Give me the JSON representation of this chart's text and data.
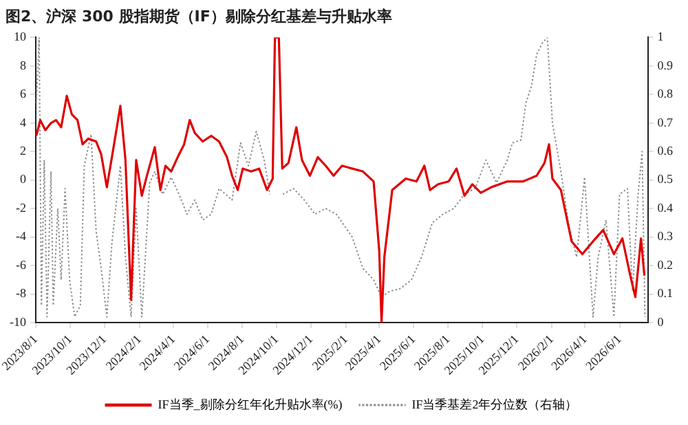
{
  "chart_data": {
    "type": "line",
    "title": "图2、沪深 300 股指期货（IF）剔除分红基差与升贴水率",
    "xlim": [
      "2023-08-01",
      "2026-07-21"
    ],
    "xticks": [
      {
        "value": "2023-08-01",
        "label": "2023/8/1"
      },
      {
        "value": "2023-10-01",
        "label": "2023/10/1"
      },
      {
        "value": "2023-12-01",
        "label": "2023/12/1"
      },
      {
        "value": "2024-02-01",
        "label": "2024/2/1"
      },
      {
        "value": "2024-04-01",
        "label": "2024/4/1"
      },
      {
        "value": "2024-06-01",
        "label": "2024/6/1"
      },
      {
        "value": "2024-08-01",
        "label": "2024/8/1"
      },
      {
        "value": "2024-10-01",
        "label": "2024/10/1"
      },
      {
        "value": "2024-12-01",
        "label": "2024/12/1"
      },
      {
        "value": "2025-02-01",
        "label": "2025/2/1"
      },
      {
        "value": "2025-04-01",
        "label": "2025/4/1"
      },
      {
        "value": "2025-06-01",
        "label": "2025/6/1"
      },
      {
        "value": "2025-08-01",
        "label": "2025/8/1"
      },
      {
        "value": "2025-10-01",
        "label": "2025/10/1"
      },
      {
        "value": "2025-12-01",
        "label": "2025/12/1"
      },
      {
        "value": "2026-02-01",
        "label": "2026/2/1"
      },
      {
        "value": "2026-04-01",
        "label": "2026/4/1"
      },
      {
        "value": "2026-06-01",
        "label": "2026/6/1"
      }
    ],
    "ylim": [
      -10,
      10
    ],
    "yticks": [
      -10,
      -8,
      -6,
      -4,
      -2,
      0,
      2,
      4,
      6,
      8,
      10
    ],
    "y2lim": [
      0,
      1
    ],
    "y2ticks": [
      0,
      0.1,
      0.2,
      0.3,
      0.4,
      0.5,
      0.6,
      0.7,
      0.8,
      0.9,
      1
    ],
    "legend": "bottom",
    "grid": false,
    "marker": "none",
    "series": [
      {
        "name": "IF当季_剔除分红年化升贴水率(%)",
        "color": "#e00000",
        "line_style": "solid",
        "x": [
          "2023-08-02",
          "2023-08-09",
          "2023-08-18",
          "2023-08-28",
          "2023-09-06",
          "2023-09-15",
          "2023-09-25",
          "2023-10-04",
          "2023-10-14",
          "2023-10-23",
          "2023-11-02",
          "2023-11-16",
          "2023-11-25",
          "2023-12-05",
          "2023-12-14",
          "2023-12-29",
          "2024-01-07",
          "2024-01-17",
          "2024-01-26",
          "2024-02-05",
          "2024-02-14",
          "2024-02-28",
          "2024-03-09",
          "2024-03-18",
          "2024-03-28",
          "2024-04-11",
          "2024-04-20",
          "2024-04-30",
          "2024-05-09",
          "2024-05-23",
          "2024-06-07",
          "2024-06-21",
          "2024-07-05",
          "2024-07-14",
          "2024-07-24",
          "2024-08-02",
          "2024-08-17",
          "2024-08-31",
          "2024-09-14",
          "2024-09-24",
          "2024-09-28",
          "2024-10-05",
          "2024-10-11",
          "2024-10-22",
          "2024-11-05",
          "2024-11-15",
          "2024-11-29",
          "2024-12-13",
          "2024-12-27",
          "2025-01-10",
          "2025-01-25",
          "2025-02-12",
          "2025-03-03",
          "2025-03-22",
          "2025-04-01",
          "2025-04-05",
          "2025-04-10",
          "2025-04-24",
          "2025-05-18",
          "2025-06-06",
          "2025-06-20",
          "2025-06-30",
          "2025-07-14",
          "2025-08-02",
          "2025-08-16",
          "2025-08-30",
          "2025-09-13",
          "2025-09-28",
          "2025-10-17",
          "2025-11-14",
          "2025-12-12",
          "2026-01-05",
          "2026-01-19",
          "2026-01-27",
          "2026-02-02",
          "2026-02-17",
          "2026-03-08",
          "2026-03-27",
          "2026-04-15",
          "2026-05-03",
          "2026-05-22",
          "2026-06-06",
          "2026-06-20",
          "2026-06-29",
          "2026-07-09",
          "2026-07-15"
        ],
        "values": [
          3.1,
          4.2,
          3.5,
          4.0,
          4.2,
          3.7,
          5.9,
          4.6,
          4.2,
          2.5,
          2.9,
          2.7,
          1.8,
          -0.5,
          1.6,
          5.2,
          1.4,
          -8.4,
          1.4,
          -1.1,
          0.3,
          2.3,
          -0.7,
          1.0,
          0.6,
          1.8,
          2.5,
          4.2,
          3.3,
          2.7,
          3.1,
          2.7,
          1.6,
          0.3,
          -0.7,
          0.8,
          0.6,
          0.8,
          -0.7,
          0.1,
          10,
          10,
          0.8,
          1.2,
          3.7,
          1.4,
          0.3,
          1.6,
          1.0,
          0.3,
          1.0,
          0.8,
          0.6,
          -0.1,
          -5.0,
          -10,
          -5.4,
          -0.7,
          0.1,
          -0.1,
          1.0,
          -0.7,
          -0.3,
          -0.1,
          0.8,
          -1.1,
          -0.3,
          -0.9,
          -0.5,
          -0.1,
          -0.1,
          0.3,
          1.2,
          2.5,
          0.1,
          -0.7,
          -4.3,
          -5.2,
          -4.3,
          -3.5,
          -5.2,
          -4.1,
          -6.7,
          -8.2,
          -4.1,
          -6.7
        ]
      },
      {
        "name": "IF当季基差2年分位数（右轴）",
        "color": "#8c8c8c",
        "line_style": "dotted",
        "axis": "y2",
        "x": [
          "2023-08-02",
          "2023-08-07",
          "2023-08-11",
          "2023-08-16",
          "2023-08-21",
          "2023-08-28",
          "2023-09-01",
          "2023-09-09",
          "2023-09-15",
          "2023-09-22",
          "2023-09-30",
          "2023-10-09",
          "2023-10-19",
          "2023-10-26",
          "2023-11-07",
          "2023-11-16",
          "2023-11-25",
          "2023-12-05",
          "2023-12-14",
          "2023-12-29",
          "2024-01-07",
          "2024-01-17",
          "2024-01-26",
          "2024-02-05",
          "2024-02-19",
          "2024-02-28",
          "2024-03-13",
          "2024-03-28",
          "2024-04-11",
          "2024-04-25",
          "2024-05-09",
          "2024-05-23",
          "2024-06-07",
          "2024-06-21",
          "2024-07-14",
          "2024-07-29",
          "2024-08-12",
          "2024-08-26",
          "2024-09-09",
          "2024-09-19",
          "2024-09-28",
          "2024-10-05",
          "2024-10-12",
          "2024-10-31",
          "2024-11-19",
          "2024-12-08",
          "2024-12-27",
          "2025-01-15",
          "2025-02-12",
          "2025-03-03",
          "2025-03-22",
          "2025-04-05",
          "2025-04-20",
          "2025-05-09",
          "2025-05-28",
          "2025-06-15",
          "2025-07-04",
          "2025-07-23",
          "2025-08-11",
          "2025-08-30",
          "2025-09-18",
          "2025-10-07",
          "2025-10-26",
          "2025-11-14",
          "2025-11-23",
          "2025-12-08",
          "2025-12-17",
          "2025-12-27",
          "2026-01-05",
          "2026-01-15",
          "2026-01-24",
          "2026-02-02",
          "2026-02-17",
          "2026-03-03",
          "2026-03-17",
          "2026-03-31",
          "2026-04-15",
          "2026-04-24",
          "2026-05-08",
          "2026-05-22",
          "2026-06-01",
          "2026-06-15",
          "2026-06-24",
          "2026-07-04",
          "2026-07-11",
          "2026-07-16"
        ],
        "values": [
          0.77,
          1.0,
          0.06,
          0.57,
          0.02,
          0.53,
          0.06,
          0.4,
          0.15,
          0.47,
          0.15,
          0.02,
          0.06,
          0.55,
          0.66,
          0.32,
          0.19,
          0.02,
          0.28,
          0.55,
          0.23,
          0.02,
          0.4,
          0.02,
          0.49,
          0.53,
          0.45,
          0.51,
          0.45,
          0.38,
          0.43,
          0.36,
          0.38,
          0.47,
          0.43,
          0.63,
          0.55,
          0.67,
          0.57,
          0.45,
          null,
          null,
          0.45,
          0.47,
          0.43,
          0.38,
          0.4,
          0.38,
          0.3,
          0.19,
          0.15,
          0.09,
          0.11,
          0.12,
          0.15,
          0.23,
          0.35,
          0.38,
          0.4,
          0.45,
          0.47,
          0.57,
          0.49,
          0.57,
          0.63,
          0.64,
          0.77,
          0.83,
          0.94,
          0.98,
          1.0,
          0.7,
          0.53,
          0.34,
          0.23,
          0.51,
          0.02,
          0.23,
          0.36,
          0.02,
          0.45,
          0.47,
          0.11,
          0.45,
          0.6,
          0.02
        ]
      }
    ]
  }
}
